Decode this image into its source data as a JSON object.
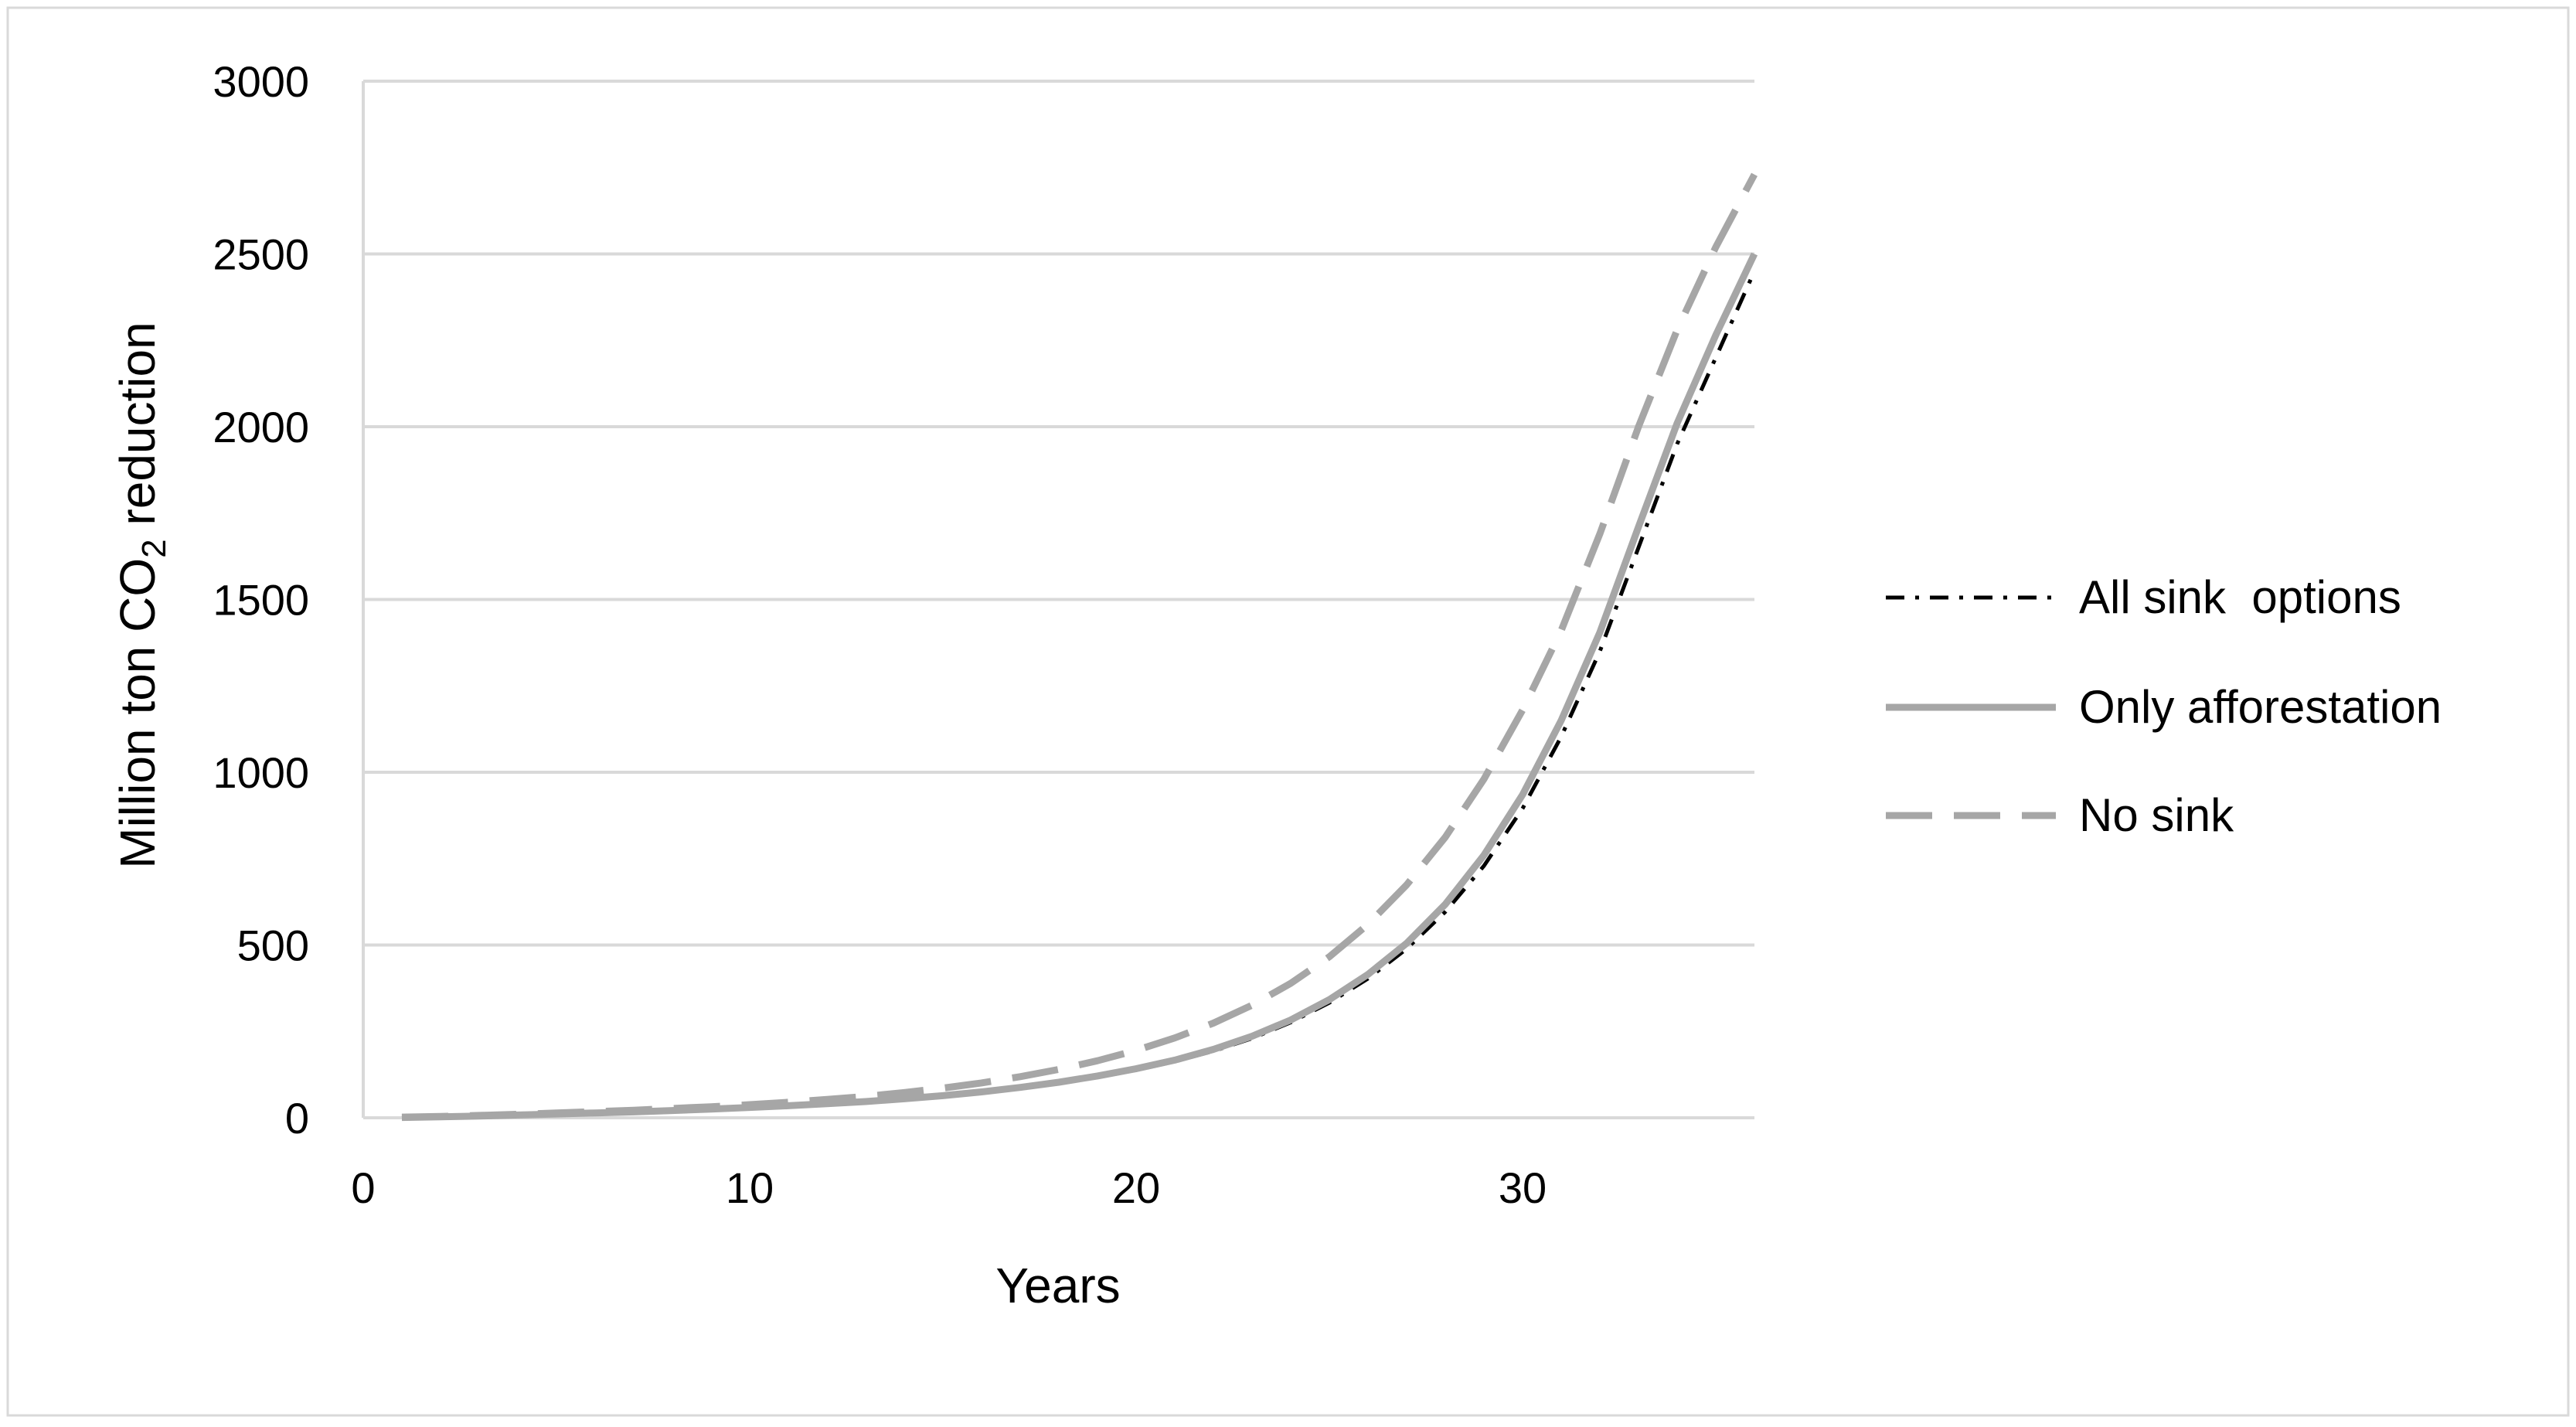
{
  "chart_data": {
    "type": "line",
    "xlabel": "Years",
    "ylabel_parts": {
      "main": "Million ton CO",
      "sub": "2",
      "suffix": " reduction"
    },
    "xlim": [
      0,
      36
    ],
    "ylim": [
      0,
      3000
    ],
    "x_ticks": [
      0,
      10,
      20,
      30
    ],
    "y_ticks": [
      0,
      500,
      1000,
      1500,
      2000,
      2500,
      3000
    ],
    "grid": "horizontal",
    "legend_position": "right",
    "x": [
      1,
      2,
      3,
      4,
      5,
      6,
      7,
      8,
      9,
      10,
      11,
      12,
      13,
      14,
      15,
      16,
      17,
      18,
      19,
      20,
      21,
      22,
      23,
      24,
      25,
      26,
      27,
      28,
      29,
      30,
      31,
      32,
      33,
      34,
      35,
      36
    ],
    "series": [
      {
        "name": "All sink  options",
        "style": "dash-dot",
        "color": "#000000",
        "values": [
          1,
          3,
          5,
          8,
          11,
          14,
          17,
          21,
          25,
          29,
          34,
          40,
          46,
          54,
          63,
          73,
          86,
          101,
          118,
          138,
          163,
          193,
          230,
          276,
          333,
          403,
          489,
          596,
          729,
          895,
          1103,
          1350,
          1650,
          1950,
          2200,
          2450
        ]
      },
      {
        "name": "Only afforestation",
        "style": "solid",
        "color": "#a6a6a6",
        "values": [
          1,
          3,
          5,
          8,
          11,
          14,
          17,
          21,
          25,
          30,
          35,
          41,
          47,
          55,
          64,
          75,
          88,
          103,
          121,
          142,
          167,
          198,
          236,
          283,
          342,
          415,
          505,
          618,
          760,
          935,
          1150,
          1405,
          1710,
          2010,
          2265,
          2500
        ]
      },
      {
        "name": "No sink",
        "style": "dashed",
        "color": "#a6a6a6",
        "values": [
          2,
          4,
          7,
          10,
          14,
          18,
          22,
          27,
          32,
          38,
          45,
          53,
          62,
          73,
          86,
          101,
          119,
          140,
          165,
          195,
          231,
          274,
          326,
          389,
          466,
          560,
          674,
          812,
          980,
          1180,
          1410,
          1690,
          2000,
          2280,
          2520,
          2730
        ]
      }
    ]
  }
}
